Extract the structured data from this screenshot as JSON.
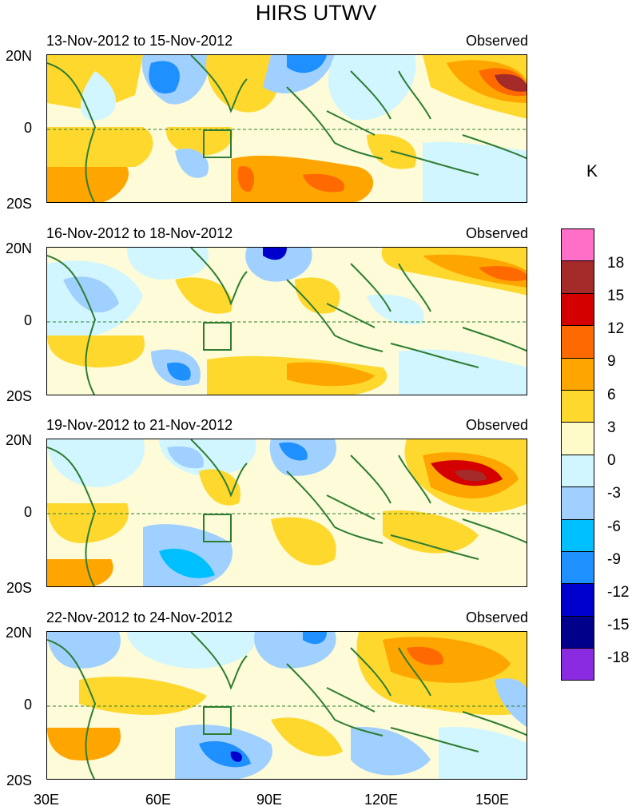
{
  "title": "HIRS UTWV",
  "units_label": "K",
  "lat_labels": [
    "20N",
    "0",
    "20S"
  ],
  "lon_labels": [
    "30E",
    "60E",
    "90E",
    "120E",
    "150E"
  ],
  "colorbar": {
    "labels": [
      "18",
      "15",
      "12",
      "9",
      "6",
      "3",
      "0",
      "-3",
      "-6",
      "-9",
      "-12",
      "-15",
      "-18"
    ],
    "colors": [
      "#ff6ec7",
      "#a52a2a",
      "#d40000",
      "#ff6a00",
      "#ffa500",
      "#ffd82e",
      "#fffbc8",
      "#d2f6ff",
      "#a0d0ff",
      "#00bfff",
      "#1e90ff",
      "#0000cd",
      "#00008b",
      "#8a2be2"
    ]
  },
  "panels": [
    {
      "period": "13-Nov-2012 to 15-Nov-2012",
      "source": "Observed"
    },
    {
      "period": "16-Nov-2012 to 18-Nov-2012",
      "source": "Observed"
    },
    {
      "period": "19-Nov-2012 to 21-Nov-2012",
      "source": "Observed"
    },
    {
      "period": "22-Nov-2012 to 24-Nov-2012",
      "source": "Observed"
    }
  ]
}
